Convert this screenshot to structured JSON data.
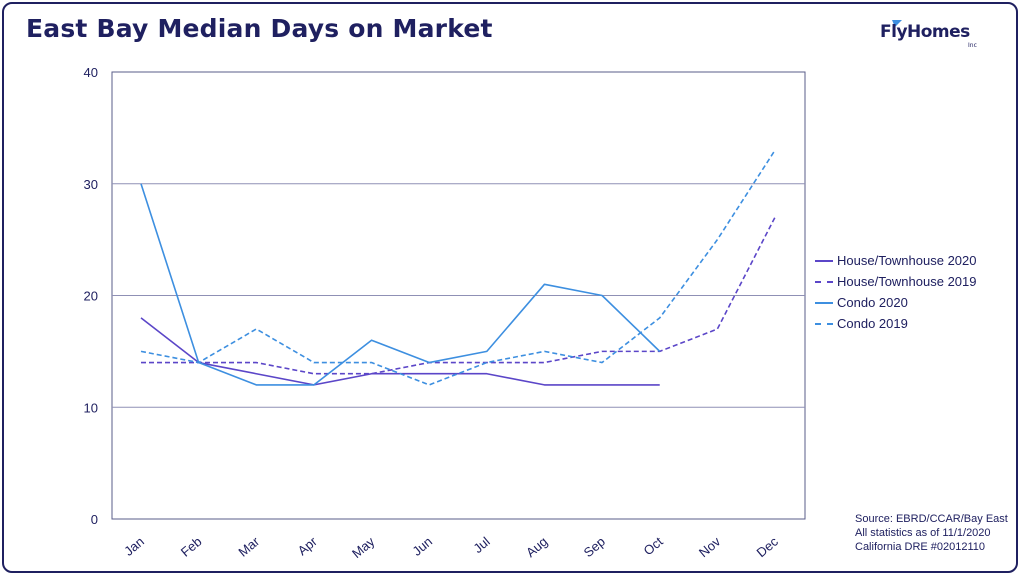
{
  "title": "East Bay Median Days on Market",
  "logo": {
    "name": "FlyHomes",
    "suffix": "Inc"
  },
  "source_lines": [
    "Source: EBRD/CCAR/Bay East",
    "All statistics as of 11/1/2020",
    "California DRE #02012110"
  ],
  "chart_data": {
    "type": "line",
    "title": "East Bay Median Days on Market",
    "xlabel": "",
    "ylabel": "",
    "categories": [
      "Jan",
      "Feb",
      "Mar",
      "Apr",
      "May",
      "Jun",
      "Jul",
      "Aug",
      "Sep",
      "Oct",
      "Nov",
      "Dec"
    ],
    "ylim": [
      0,
      40
    ],
    "yticks": [
      0,
      10,
      20,
      30,
      40
    ],
    "grid": true,
    "legend_position": "right",
    "series": [
      {
        "name": "House/Townhouse 2020",
        "color": "#5b46c8",
        "dashed": false,
        "values": [
          18,
          14,
          13,
          12,
          13,
          13,
          13,
          12,
          12,
          12,
          null,
          null
        ]
      },
      {
        "name": "House/Townhouse 2019",
        "color": "#5b46c8",
        "dashed": true,
        "values": [
          14,
          14,
          14,
          13,
          13,
          14,
          14,
          14,
          15,
          15,
          17,
          27
        ]
      },
      {
        "name": "Condo 2020",
        "color": "#3d8fe0",
        "dashed": false,
        "values": [
          30,
          14,
          12,
          12,
          16,
          14,
          15,
          21,
          20,
          15,
          null,
          null
        ]
      },
      {
        "name": "Condo 2019",
        "color": "#3d8fe0",
        "dashed": true,
        "values": [
          15,
          14,
          17,
          14,
          14,
          12,
          14,
          15,
          14,
          18,
          25,
          33
        ]
      }
    ]
  }
}
